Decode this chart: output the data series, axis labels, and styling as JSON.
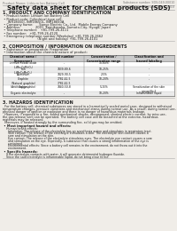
{
  "bg_color": "#f0ede8",
  "header_left": "Product Name: Lithium Ion Battery Cell",
  "header_right": "Substance number: SDS-049-00010\nEstablished / Revision: Dec.7.2010",
  "title": "Safety data sheet for chemical products (SDS)",
  "section1_title": "1. PRODUCT AND COMPANY IDENTIFICATION",
  "section1_lines": [
    " • Product name: Lithium Ion Battery Cell",
    " • Product code: Cylindrical-type cell:",
    "     INR18650J, INR18650L, INR18650A",
    " • Company name:      Sanyo Electric Co., Ltd.  Mobile Energy Company",
    " • Address:               2001  Kamikosaka, Sumoto-City, Hyogo, Japan",
    " • Telephone number:   +81-799-26-4111",
    " • Fax number:   +81-799-26-4120",
    " • Emergency telephone number (Weekday) +81-799-26-2662",
    "                                   (Night and holiday) +81-799-26-4101"
  ],
  "section2_title": "2. COMPOSITION / INFORMATION ON INGREDIENTS",
  "section2_lines": [
    " • Substance or preparation: Preparation",
    " • Information about the chemical nature of product:"
  ],
  "table_col_headers": [
    "Chemical name /\nComponent",
    "CAS number",
    "Concentration /\nConcentration range",
    "Classification and\nhazard labeling"
  ],
  "table_rows": [
    [
      "Lithium cobalt oxide\n(LiMn₂CoMnO₄)",
      "-",
      "30-60%",
      "-"
    ],
    [
      "Iron\n(LiMnCoMnO₄)",
      "7439-89-6",
      "10-25%",
      "-"
    ],
    [
      "Aluminum",
      "7429-90-5",
      "2-5%",
      "-"
    ],
    [
      "Graphite\n(Natural graphite)\n(Artificial graphite)",
      "7782-42-5\n7782-42-5",
      "10-20%",
      "-"
    ],
    [
      "Copper",
      "7440-50-8",
      "5-15%",
      "Sensitization of the skin\ngroup No.2"
    ],
    [
      "Organic electrolyte",
      "-",
      "10-20%",
      "Inflammable liquid"
    ]
  ],
  "section3_title": "3. HAZARDS IDENTIFICATION",
  "section3_paras": [
    "  For the battery cell, chemical substances are stored in a hermetically sealed metal case, designed to withstand",
    "temperature changes, pressure variations and mechanical-stress during normal use. As a result, during normal use, there is no",
    "physical danger of ignition or explosion and there is no danger of hazardous materials leakage.",
    "  However, if exposed to a fire, added mechanical shocks, decomposed, shorted electric current, by miss use,",
    "the gas release vent can be operated. The battery cell case will be breached at the extreme, hazardous",
    "materials may be released.",
    "  Moreover, if heated strongly by the surrounding fire, solid gas may be emitted."
  ],
  "sub1_header": " • Most important hazard and effects:",
  "sub1_lines": [
    "    Human health effects:",
    "      Inhalation: The release of the electrolyte has an anesthesia action and stimulates in respiratory tract.",
    "      Skin contact: The release of the electrolyte stimulates a skin. The electrolyte skin contact causes a",
    "      sore and stimulation on the skin.",
    "      Eye contact: The release of the electrolyte stimulates eyes. The electrolyte eye contact causes a sore",
    "      and stimulation on the eye. Especially, a substance that causes a strong inflammation of the eye is",
    "      contained.",
    "      Environmental effects: Since a battery cell remains in the environment, do not throw out it into the",
    "      environment."
  ],
  "sub2_header": " • Specific hazards:",
  "sub2_lines": [
    "    If the electrolyte contacts with water, it will generate detrimental hydrogen fluoride.",
    "    Since the said electrolyte is inflammable liquid, do not bring close to fire."
  ],
  "line_color": "#aaaaaa",
  "text_color": "#222222",
  "header_color": "#777777",
  "table_header_bg": "#cccccc",
  "table_row_bg_even": "#ffffff",
  "table_row_bg_odd": "#ebebeb"
}
